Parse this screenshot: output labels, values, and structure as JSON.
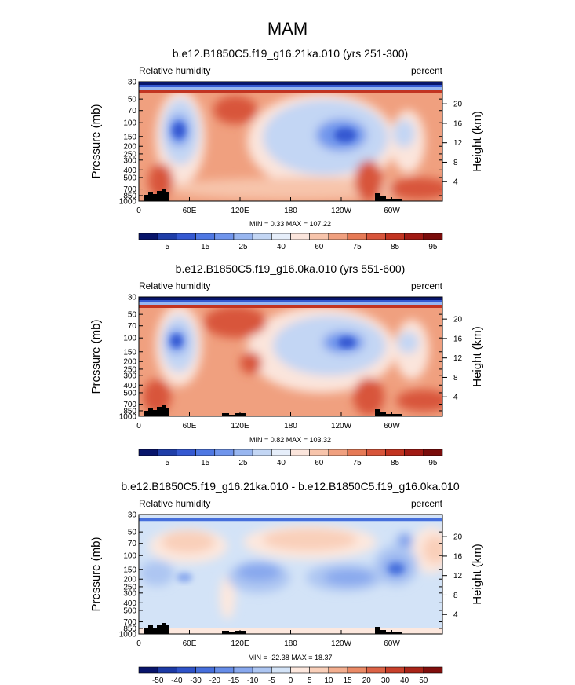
{
  "title": "MAM",
  "chart_data": [
    {
      "type": "heatmap",
      "panel_title": "b.e12.B1850C5.f19_g16.21ka.010 (yrs 251-300)",
      "variable_label": "Relative humidity",
      "units_label": "percent",
      "ylabel": "Pressure (mb)",
      "ylabel_right": "Height (km)",
      "x_ticks": [
        "0",
        "60E",
        "120E",
        "180",
        "120W",
        "60W"
      ],
      "y_ticks": [
        "30",
        "50",
        "70",
        "100",
        "150",
        "200",
        "250",
        "300",
        "400",
        "500",
        "700",
        "850",
        "1000"
      ],
      "height_ticks": [
        "20",
        "16",
        "12",
        "8",
        "4"
      ],
      "min_max_label": "MIN =   0.33  MAX = 107.22",
      "colorbar_labels": [
        "5",
        "15",
        "25",
        "40",
        "60",
        "75",
        "85",
        "95"
      ],
      "colorbar_colors": [
        "#08156b",
        "#1f3ea8",
        "#3559d1",
        "#4f78e3",
        "#7095ec",
        "#98b6f0",
        "#c3d6f4",
        "#e6eefa",
        "#fbe5dc",
        "#f7c4ab",
        "#f0a07f",
        "#e67a56",
        "#d8553b",
        "#c23421",
        "#a11a14",
        "#7a0c0b"
      ],
      "min": 0.33,
      "max": 107.22
    },
    {
      "type": "heatmap",
      "panel_title": "b.e12.B1850C5.f19_g16.0ka.010 (yrs 551-600)",
      "variable_label": "Relative humidity",
      "units_label": "percent",
      "ylabel": "Pressure (mb)",
      "ylabel_right": "Height (km)",
      "x_ticks": [
        "0",
        "60E",
        "120E",
        "180",
        "120W",
        "60W"
      ],
      "y_ticks": [
        "30",
        "50",
        "70",
        "100",
        "150",
        "200",
        "250",
        "300",
        "400",
        "500",
        "700",
        "850",
        "1000"
      ],
      "height_ticks": [
        "20",
        "16",
        "12",
        "8",
        "4"
      ],
      "min_max_label": "MIN =   0.82  MAX = 103.32",
      "colorbar_labels": [
        "5",
        "15",
        "25",
        "40",
        "60",
        "75",
        "85",
        "95"
      ],
      "colorbar_colors": [
        "#08156b",
        "#1f3ea8",
        "#3559d1",
        "#4f78e3",
        "#7095ec",
        "#98b6f0",
        "#c3d6f4",
        "#e6eefa",
        "#fbe5dc",
        "#f7c4ab",
        "#f0a07f",
        "#e67a56",
        "#d8553b",
        "#c23421",
        "#a11a14",
        "#7a0c0b"
      ],
      "min": 0.82,
      "max": 103.32
    },
    {
      "type": "heatmap",
      "panel_title": "b.e12.B1850C5.f19_g16.21ka.010 - b.e12.B1850C5.f19_g16.0ka.010",
      "variable_label": "Relative humidity",
      "units_label": "percent",
      "ylabel": "Pressure (mb)",
      "ylabel_right": "Height (km)",
      "x_ticks": [
        "0",
        "60E",
        "120E",
        "180",
        "120W",
        "60W"
      ],
      "y_ticks": [
        "30",
        "50",
        "70",
        "100",
        "150",
        "200",
        "250",
        "300",
        "400",
        "500",
        "700",
        "850",
        "1000"
      ],
      "height_ticks": [
        "20",
        "16",
        "12",
        "8",
        "4"
      ],
      "min_max_label": "MIN = -22.38  MAX =  18.37",
      "colorbar_labels": [
        "-50",
        "-40",
        "-30",
        "-20",
        "-15",
        "-10",
        "-5",
        "0",
        "5",
        "10",
        "15",
        "20",
        "30",
        "40",
        "50"
      ],
      "colorbar_colors": [
        "#08156b",
        "#1c3aa5",
        "#2f53c8",
        "#466fdc",
        "#668de8",
        "#88a8ee",
        "#adc6f2",
        "#d3e3f7",
        "#fde8de",
        "#f9cfb9",
        "#f3ae8f",
        "#ea8a66",
        "#dc6346",
        "#c8402b",
        "#a92418",
        "#800e0c"
      ],
      "min": -22.38,
      "max": 18.37
    }
  ]
}
